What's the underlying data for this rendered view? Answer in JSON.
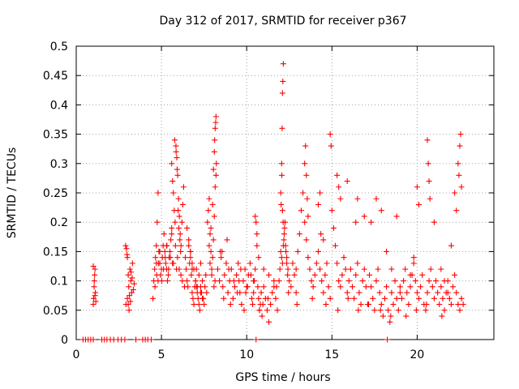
{
  "chart_data": {
    "type": "scatter",
    "title": "Day 312 of 2017, SRMTID for receiver p367",
    "xlabel": "GPS time / hours",
    "ylabel": "SRMTID / TECUs",
    "xlim": [
      0,
      24.5
    ],
    "ylim": [
      0,
      0.5
    ],
    "xticks": [
      0,
      5,
      10,
      15,
      20
    ],
    "yticks": [
      0,
      0.05,
      0.1,
      0.15,
      0.2,
      0.25,
      0.3,
      0.35,
      0.4,
      0.45,
      0.5
    ],
    "grid": true,
    "marker": "+",
    "color": "#ff0000",
    "series": [
      {
        "name": "SRMTID",
        "x": [
          0.4,
          0.55,
          0.7,
          0.85,
          1.0,
          1.5,
          1.65,
          1.8,
          2.0,
          2.2,
          2.45,
          2.65,
          2.85,
          3.5,
          3.9,
          4.05,
          4.2,
          4.4,
          10.55,
          18.25,
          1.0,
          1.02,
          1.05,
          1.08,
          1.1,
          1.12,
          1.15,
          1.0,
          1.06,
          1.1,
          2.9,
          2.95,
          3.0,
          3.05,
          2.92,
          3.0,
          3.08,
          3.15,
          3.2,
          3.25,
          3.3,
          3.1,
          3.18,
          3.22,
          3.35,
          3.4,
          3.12,
          3.28,
          3.05,
          2.98,
          4.5,
          4.55,
          4.6,
          4.65,
          4.7,
          4.75,
          4.8,
          4.85,
          4.9,
          4.95,
          5.0,
          5.05,
          5.1,
          5.15,
          5.2,
          5.25,
          5.3,
          5.35,
          5.4,
          5.45,
          5.5,
          5.55,
          5.6,
          5.65,
          4.62,
          4.72,
          4.82,
          4.9,
          5.02,
          5.12,
          5.22,
          5.32,
          5.42,
          5.52,
          5.6,
          5.65,
          5.7,
          5.75,
          5.8,
          5.85,
          5.9,
          5.95,
          6.0,
          6.05,
          6.1,
          6.15,
          6.2,
          6.25,
          6.3,
          5.78,
          5.86,
          5.92,
          5.98,
          6.02,
          6.08,
          6.12,
          5.7,
          5.82,
          5.88,
          5.94,
          6.04,
          6.14,
          6.22,
          6.35,
          6.4,
          6.45,
          6.5,
          6.55,
          6.6,
          6.65,
          6.7,
          6.75,
          6.8,
          6.85,
          6.9,
          6.95,
          7.0,
          7.05,
          7.1,
          7.15,
          7.2,
          7.25,
          7.3,
          7.35,
          7.4,
          7.45,
          7.5,
          7.55,
          7.6,
          7.65,
          6.5,
          6.6,
          6.7,
          6.8,
          6.9,
          7.0,
          7.1,
          7.2,
          7.3,
          7.4,
          7.7,
          7.75,
          7.8,
          7.85,
          7.9,
          7.95,
          8.0,
          8.05,
          8.1,
          8.15,
          8.2,
          7.8,
          7.9,
          8.0,
          8.05,
          8.1,
          8.12,
          8.15,
          8.18,
          8.2,
          8.22,
          7.85,
          7.95,
          8.08,
          8.14,
          8.3,
          8.4,
          8.5,
          8.6,
          8.7,
          8.8,
          8.9,
          9.0,
          9.1,
          9.2,
          9.3,
          9.4,
          9.5,
          9.6,
          9.7,
          9.8,
          9.9,
          10.0,
          10.1,
          10.2,
          10.3,
          10.4,
          8.45,
          8.65,
          8.85,
          9.05,
          9.25,
          9.45,
          9.65,
          9.85,
          10.05,
          10.25,
          10.4,
          10.45,
          10.5,
          10.55,
          10.6,
          10.65,
          10.7,
          10.75,
          10.8,
          10.85,
          10.9,
          10.95,
          11.0,
          11.1,
          11.2,
          11.3,
          11.4,
          11.5,
          11.6,
          11.7,
          11.8,
          10.5,
          10.6,
          10.7,
          11.0,
          11.3,
          11.6,
          11.9,
          11.95,
          12.0,
          12.05,
          12.1,
          12.15,
          12.2,
          12.25,
          12.3,
          12.35,
          12.4,
          12.05,
          12.08,
          12.1,
          12.12,
          12.15,
          12.0,
          12.02,
          12.06,
          12.1,
          12.14,
          12.18,
          12.22,
          12.28,
          12.35,
          12.42,
          12.5,
          12.6,
          12.7,
          12.8,
          12.9,
          12.9,
          13.0,
          13.1,
          13.2,
          13.3,
          13.4,
          13.5,
          13.6,
          13.7,
          13.8,
          13.9,
          14.0,
          14.1,
          14.2,
          14.3,
          14.4,
          14.5,
          14.6,
          14.7,
          14.8,
          14.9,
          13.4,
          13.45,
          13.5,
          13.55,
          13.6,
          14.2,
          14.3,
          14.35,
          14.5,
          14.9,
          14.95,
          15.0,
          15.1,
          15.2,
          15.3,
          15.4,
          15.5,
          15.6,
          15.7,
          15.8,
          15.9,
          16.0,
          16.1,
          16.2,
          16.3,
          16.4,
          16.5,
          16.6,
          16.7,
          16.8,
          16.9,
          17.0,
          15.3,
          15.4,
          15.5,
          15.9,
          16.4,
          16.5,
          16.9,
          17.1,
          17.2,
          17.3,
          17.4,
          17.5,
          17.6,
          17.7,
          17.8,
          17.9,
          18.0,
          18.1,
          18.2,
          18.3,
          18.4,
          18.5,
          18.6,
          18.7,
          18.8,
          18.9,
          19.0,
          17.3,
          17.6,
          17.9,
          18.2,
          18.5,
          18.8,
          19.0,
          19.1,
          19.2,
          19.3,
          19.4,
          19.5,
          19.6,
          19.7,
          19.8,
          19.9,
          20.0,
          20.1,
          20.2,
          20.3,
          20.4,
          20.5,
          20.6,
          20.7,
          20.8,
          20.9,
          21.0,
          20.0,
          20.1,
          20.6,
          20.65,
          20.7,
          20.75,
          21.0,
          19.6,
          19.8,
          21.1,
          21.2,
          21.3,
          21.4,
          21.5,
          21.6,
          21.7,
          21.8,
          21.9,
          22.0,
          22.1,
          22.2,
          22.3,
          22.4,
          22.5,
          22.6,
          22.7,
          22.4,
          22.45,
          22.5,
          22.55,
          22.6,
          22.2,
          22.3,
          21.4,
          21.6,
          21.8,
          22.0,
          4.7,
          4.8,
          5.3,
          5.6,
          6.7,
          6.8,
          7.05,
          7.3,
          8.55,
          8.95,
          9.55,
          9.95,
          10.35,
          10.75,
          11.25,
          11.75,
          12.45,
          12.95,
          13.85,
          14.65,
          15.35,
          15.95,
          16.55,
          17.15,
          17.85,
          18.45,
          19.35,
          19.95,
          20.55,
          21.45
        ],
        "y": [
          0,
          0,
          0,
          0,
          0,
          0,
          0,
          0,
          0,
          0,
          0,
          0,
          0,
          0,
          0,
          0,
          0,
          0,
          0,
          0,
          0.06,
          0.07,
          0.09,
          0.11,
          0.12,
          0.08,
          0.065,
          0.125,
          0.1,
          0.075,
          0.16,
          0.155,
          0.14,
          0.11,
          0.06,
          0.07,
          0.09,
          0.12,
          0.1,
          0.08,
          0.13,
          0.05,
          0.065,
          0.115,
          0.085,
          0.095,
          0.075,
          0.105,
          0.06,
          0.145,
          0.07,
          0.1,
          0.12,
          0.14,
          0.16,
          0.2,
          0.25,
          0.15,
          0.13,
          0.11,
          0.12,
          0.14,
          0.16,
          0.18,
          0.15,
          0.13,
          0.12,
          0.1,
          0.11,
          0.14,
          0.15,
          0.17,
          0.19,
          0.13,
          0.09,
          0.11,
          0.13,
          0.15,
          0.1,
          0.12,
          0.14,
          0.16,
          0.12,
          0.14,
          0.3,
          0.27,
          0.25,
          0.22,
          0.2,
          0.33,
          0.31,
          0.28,
          0.24,
          0.21,
          0.18,
          0.16,
          0.2,
          0.23,
          0.26,
          0.34,
          0.32,
          0.29,
          0.22,
          0.19,
          0.17,
          0.15,
          0.13,
          0.16,
          0.12,
          0.14,
          0.12,
          0.11,
          0.1,
          0.09,
          0.14,
          0.12,
          0.1,
          0.09,
          0.16,
          0.13,
          0.15,
          0.11,
          0.08,
          0.07,
          0.06,
          0.09,
          0.1,
          0.12,
          0.08,
          0.07,
          0.06,
          0.05,
          0.09,
          0.08,
          0.1,
          0.07,
          0.06,
          0.09,
          0.11,
          0.08,
          0.19,
          0.17,
          0.15,
          0.13,
          0.12,
          0.1,
          0.09,
          0.11,
          0.13,
          0.07,
          0.2,
          0.22,
          0.24,
          0.18,
          0.15,
          0.12,
          0.14,
          0.17,
          0.21,
          0.26,
          0.28,
          0.16,
          0.19,
          0.23,
          0.29,
          0.32,
          0.34,
          0.36,
          0.37,
          0.38,
          0.3,
          0.13,
          0.11,
          0.09,
          0.1,
          0.12,
          0.1,
          0.14,
          0.09,
          0.11,
          0.13,
          0.08,
          0.1,
          0.12,
          0.07,
          0.09,
          0.11,
          0.13,
          0.08,
          0.06,
          0.1,
          0.12,
          0.09,
          0.11,
          0.13,
          0.07,
          0.1,
          0.15,
          0.07,
          0.17,
          0.06,
          0.1,
          0.08,
          0.12,
          0.05,
          0.09,
          0.11,
          0.08,
          0.1,
          0.12,
          0.2,
          0.18,
          0.09,
          0.07,
          0.05,
          0.06,
          0.08,
          0.04,
          0.06,
          0.09,
          0.07,
          0.05,
          0.03,
          0.06,
          0.08,
          0.1,
          0.07,
          0.05,
          0.21,
          0.16,
          0.14,
          0.12,
          0.11,
          0.09,
          0.1,
          0.12,
          0.15,
          0.14,
          0.13,
          0.16,
          0.18,
          0.2,
          0.15,
          0.13,
          0.11,
          0.3,
          0.36,
          0.42,
          0.44,
          0.47,
          0.25,
          0.23,
          0.28,
          0.22,
          0.2,
          0.17,
          0.19,
          0.16,
          0.14,
          0.12,
          0.1,
          0.09,
          0.13,
          0.11,
          0.08,
          0.12,
          0.15,
          0.18,
          0.22,
          0.25,
          0.2,
          0.17,
          0.14,
          0.12,
          0.1,
          0.09,
          0.11,
          0.13,
          0.15,
          0.12,
          0.1,
          0.08,
          0.11,
          0.13,
          0.09,
          0.07,
          0.3,
          0.33,
          0.28,
          0.24,
          0.21,
          0.23,
          0.25,
          0.18,
          0.17,
          0.35,
          0.33,
          0.22,
          0.19,
          0.16,
          0.13,
          0.1,
          0.09,
          0.11,
          0.14,
          0.12,
          0.08,
          0.1,
          0.12,
          0.09,
          0.07,
          0.11,
          0.13,
          0.08,
          0.06,
          0.1,
          0.12,
          0.09,
          0.28,
          0.26,
          0.24,
          0.27,
          0.2,
          0.24,
          0.21,
          0.06,
          0.11,
          0.09,
          0.07,
          0.05,
          0.1,
          0.12,
          0.08,
          0.06,
          0.04,
          0.07,
          0.09,
          0.05,
          0.03,
          0.08,
          0.06,
          0.1,
          0.07,
          0.05,
          0.08,
          0.2,
          0.24,
          0.22,
          0.15,
          0.12,
          0.21,
          0.09,
          0.07,
          0.1,
          0.12,
          0.08,
          0.06,
          0.09,
          0.11,
          0.13,
          0.1,
          0.08,
          0.07,
          0.09,
          0.11,
          0.06,
          0.05,
          0.08,
          0.1,
          0.12,
          0.09,
          0.07,
          0.26,
          0.23,
          0.34,
          0.3,
          0.27,
          0.24,
          0.2,
          0.11,
          0.14,
          0.1,
          0.08,
          0.06,
          0.09,
          0.07,
          0.05,
          0.08,
          0.1,
          0.07,
          0.06,
          0.09,
          0.11,
          0.08,
          0.06,
          0.05,
          0.07,
          0.06,
          0.3,
          0.28,
          0.33,
          0.35,
          0.26,
          0.25,
          0.22,
          0.12,
          0.1,
          0.08,
          0.16,
          0.13,
          0.1,
          0.16,
          0.18,
          0.14,
          0.12,
          0.09,
          0.08,
          0.15,
          0.12,
          0.1,
          0.08,
          0.06,
          0.05,
          0.07,
          0.09,
          0.08,
          0.06,
          0.07,
          0.06,
          0.05,
          0.07,
          0.05,
          0.06,
          0.05,
          0.04,
          0.04,
          0.05,
          0.06,
          0.04
        ]
      }
    ]
  }
}
